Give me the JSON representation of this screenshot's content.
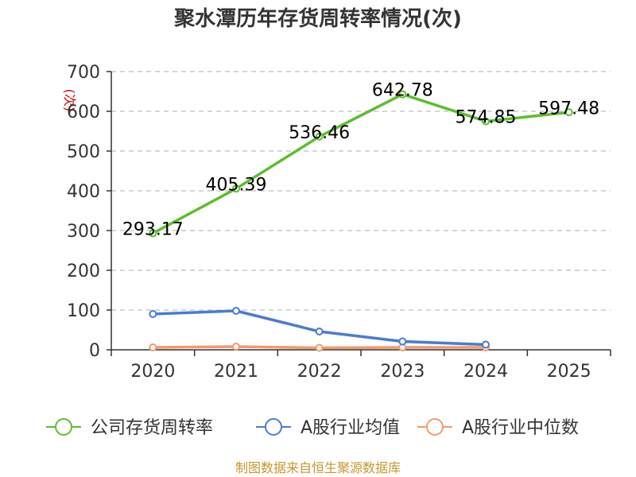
{
  "chart_data": {
    "type": "line",
    "title": "聚水潭历年存货周转率情况(次)",
    "ylabel": "(次)",
    "xlabel": "",
    "categories": [
      "2020",
      "2021",
      "2022",
      "2023",
      "2024",
      "2025"
    ],
    "ylim": [
      0,
      700
    ],
    "yticks": [
      0,
      100,
      200,
      300,
      400,
      500,
      600,
      700
    ],
    "grid": true,
    "legend_position": "bottom",
    "series": [
      {
        "name": "公司存货周转率",
        "color": "#5cbf2a",
        "values": [
          293.17,
          405.39,
          536.46,
          642.78,
          574.85,
          597.48
        ],
        "labels": [
          "293.17",
          "405.39",
          "536.46",
          "642.78",
          "574.85",
          "597.48"
        ]
      },
      {
        "name": "A股行业均值",
        "color": "#4a7bd4",
        "values": [
          90,
          98,
          46,
          21,
          13,
          null
        ],
        "labels": []
      },
      {
        "name": "A股行业中位数",
        "color": "#f49a6c",
        "values": [
          6,
          8,
          5,
          6,
          6,
          null
        ],
        "labels": []
      }
    ],
    "source": "制图数据来自恒生聚源数据库"
  }
}
